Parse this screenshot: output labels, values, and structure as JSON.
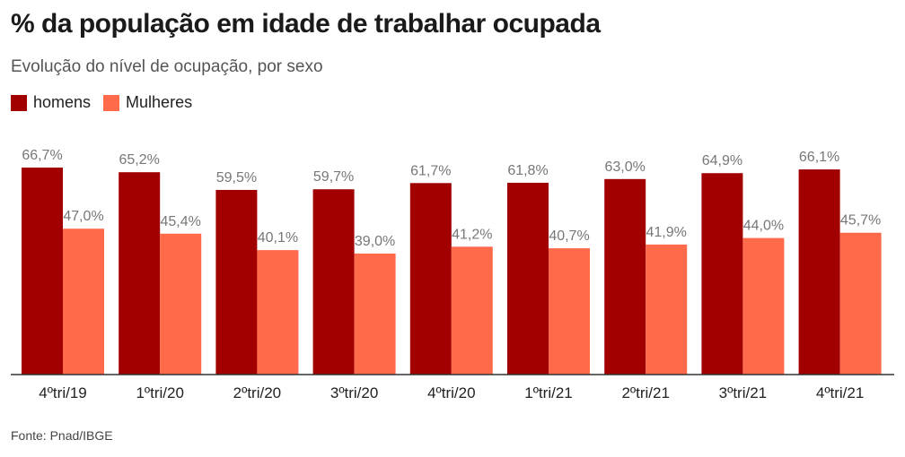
{
  "chart_data": {
    "type": "bar",
    "title": "% da população em idade de trabalhar ocupada",
    "subtitle": "Evolução do nível de ocupação, por sexo",
    "categories": [
      "4ºtri/19",
      "1ºtri/20",
      "2ºtri/20",
      "3ºtri/20",
      "4ºtri/20",
      "1ºtri/21",
      "2ºtri/21",
      "3ºtri/21",
      "4ºtri/21"
    ],
    "series": [
      {
        "name": "homens",
        "color": "#a20000",
        "values": [
          66.7,
          65.2,
          59.5,
          59.7,
          61.7,
          61.8,
          63.0,
          64.9,
          66.1
        ],
        "labels": [
          "66,7%",
          "65,2%",
          "59,5%",
          "59,7%",
          "61,7%",
          "61,8%",
          "63,0%",
          "64,9%",
          "66,1%"
        ]
      },
      {
        "name": "Mulheres",
        "color": "#ff6a4a",
        "values": [
          47.0,
          45.4,
          40.1,
          39.0,
          41.2,
          40.7,
          41.9,
          44.0,
          45.7
        ],
        "labels": [
          "47,0%",
          "45,4%",
          "40,1%",
          "39,0%",
          "41,2%",
          "40,7%",
          "41,9%",
          "44,0%",
          "45,7%"
        ]
      }
    ],
    "ylim": [
      0,
      66.7
    ],
    "legend_position": "top-left",
    "grid": false,
    "source": "Fonte: Pnad/IBGE"
  }
}
